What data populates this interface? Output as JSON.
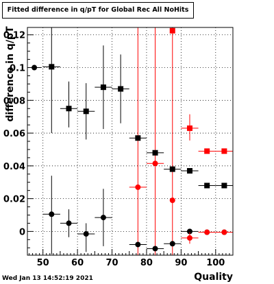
{
  "title": "Fitted difference in q/pT for Global Rec All NoHits",
  "timestamp": "Wed Jan 13 14:52:19 2021",
  "chart_data": {
    "type": "scatter",
    "title": "Fitted difference in q/pT for Global Rec All NoHits",
    "xlabel": "Quality",
    "ylabel": "difference in q/pT",
    "xlim": [
      45.5,
      105
    ],
    "ylim": [
      -0.0145,
      0.1245
    ],
    "x_ticks": [
      50,
      60,
      70,
      80,
      90,
      100
    ],
    "x_tick_labels": [
      "50",
      "60",
      "70",
      "80",
      "90",
      "100"
    ],
    "y_ticks": [
      0,
      0.02,
      0.04,
      0.06,
      0.08,
      0.1,
      0.12
    ],
    "y_tick_labels": [
      "0",
      "0.02",
      "0.04",
      "0.06",
      "0.08",
      "0.1",
      "0.12"
    ],
    "grid": true,
    "series": [
      {
        "marker": "square",
        "color": "#000000",
        "points": [
          {
            "x": 52.5,
            "y": 0.1005,
            "xerr": 2.5,
            "yerr_lo": 0.0405,
            "yerr_hi": 0.0245
          },
          {
            "x": 57.5,
            "y": 0.075,
            "xerr": 2.5,
            "yerr_lo": 0.0115,
            "yerr_hi": 0.0165
          },
          {
            "x": 62.5,
            "y": 0.0733,
            "xerr": 2.5,
            "yerr_lo": 0.0172,
            "yerr_hi": 0.0172
          },
          {
            "x": 67.5,
            "y": 0.088,
            "xerr": 2.5,
            "yerr_lo": 0.0255,
            "yerr_hi": 0.0255
          },
          {
            "x": 72.5,
            "y": 0.087,
            "xerr": 2.5,
            "yerr_lo": 0.021,
            "yerr_hi": 0.021
          },
          {
            "x": 77.5,
            "y": 0.057,
            "xerr": 2.5,
            "yerr_lo": 0.0,
            "yerr_hi": 0.0
          },
          {
            "x": 82.5,
            "y": 0.048,
            "xerr": 2.5,
            "yerr_lo": 0.0,
            "yerr_hi": 0.0
          },
          {
            "x": 87.5,
            "y": 0.038,
            "xerr": 2.5,
            "yerr_lo": 0.0,
            "yerr_hi": 0.0
          },
          {
            "x": 92.5,
            "y": 0.037,
            "xerr": 2.5,
            "yerr_lo": 0.0,
            "yerr_hi": 0.0
          },
          {
            "x": 97.5,
            "y": 0.028,
            "xerr": 2.5,
            "yerr_lo": 0.0,
            "yerr_hi": 0.0
          },
          {
            "x": 102.5,
            "y": 0.028,
            "xerr": 2.5,
            "yerr_lo": 0.0,
            "yerr_hi": 0.0
          }
        ]
      },
      {
        "marker": "circle",
        "color": "#000000",
        "points": [
          {
            "x": 47.5,
            "y": 0.1,
            "xerr": 2.0,
            "yerr_lo": 0.0,
            "yerr_hi": 0.0
          },
          {
            "x": 52.5,
            "y": 0.0105,
            "xerr": 2.5,
            "yerr_lo": 0.0245,
            "yerr_hi": 0.0235
          },
          {
            "x": 57.5,
            "y": 0.005,
            "xerr": 2.5,
            "yerr_lo": 0.0085,
            "yerr_hi": 0.0085
          },
          {
            "x": 62.5,
            "y": -0.0015,
            "xerr": 2.5,
            "yerr_lo": 0.011,
            "yerr_hi": 0.0065
          },
          {
            "x": 67.5,
            "y": 0.0085,
            "xerr": 2.5,
            "yerr_lo": 0.0175,
            "yerr_hi": 0.0175
          },
          {
            "x": 77.5,
            "y": -0.008,
            "xerr": 2.5,
            "yerr_lo": 0.0,
            "yerr_hi": 0.0
          },
          {
            "x": 82.5,
            "y": -0.0105,
            "xerr": 2.5,
            "yerr_lo": 0.0,
            "yerr_hi": 0.0
          },
          {
            "x": 87.5,
            "y": -0.0075,
            "xerr": 2.5,
            "yerr_lo": 0.0,
            "yerr_hi": 0.0
          },
          {
            "x": 92.5,
            "y": 0.0,
            "xerr": 2.5,
            "yerr_lo": 0.0,
            "yerr_hi": 0.0
          },
          {
            "x": 97.5,
            "y": -0.0005,
            "xerr": 2.5,
            "yerr_lo": 0.0,
            "yerr_hi": 0.0
          },
          {
            "x": 102.5,
            "y": -0.0005,
            "xerr": 2.5,
            "yerr_lo": 0.0,
            "yerr_hi": 0.0
          }
        ]
      },
      {
        "marker": "square",
        "color": "#ff0000",
        "points": [
          {
            "x": 87.5,
            "y": 0.1225,
            "xerr": 0.0,
            "yerr_lo": 0.0,
            "yerr_hi": 0.0
          },
          {
            "x": 92.5,
            "y": 0.063,
            "xerr": 2.5,
            "yerr_lo": 0.0075,
            "yerr_hi": 0.0085
          },
          {
            "x": 97.5,
            "y": 0.049,
            "xerr": 2.5,
            "yerr_lo": 0.0,
            "yerr_hi": 0.0
          },
          {
            "x": 102.5,
            "y": 0.049,
            "xerr": 2.5,
            "yerr_lo": 0.0,
            "yerr_hi": 0.0
          }
        ]
      },
      {
        "marker": "circle",
        "color": "#ff0000",
        "points": [
          {
            "x": 77.5,
            "y": 0.027,
            "xerr": 2.5,
            "yerr_lo": 0.0,
            "yerr_hi": 0.0
          },
          {
            "x": 82.5,
            "y": 0.0415,
            "xerr": 2.5,
            "yerr_lo": 0.0,
            "yerr_hi": 0.0
          },
          {
            "x": 87.5,
            "y": 0.019,
            "xerr": 0.0,
            "yerr_lo": 0.0,
            "yerr_hi": 0.0
          },
          {
            "x": 92.5,
            "y": -0.004,
            "xerr": 2.5,
            "yerr_lo": 0.0035,
            "yerr_hi": 0.0035
          },
          {
            "x": 97.5,
            "y": -0.0005,
            "xerr": 2.5,
            "yerr_lo": 0.0,
            "yerr_hi": 0.0
          },
          {
            "x": 102.5,
            "y": -0.0005,
            "xerr": 2.5,
            "yerr_lo": 0.0,
            "yerr_hi": 0.0
          }
        ]
      }
    ],
    "full_range_error_bars": [
      {
        "x": 77.5,
        "color": "#ff0000"
      },
      {
        "x": 82.5,
        "color": "#ff0000"
      },
      {
        "x": 87.5,
        "color": "#ff0000"
      }
    ]
  }
}
